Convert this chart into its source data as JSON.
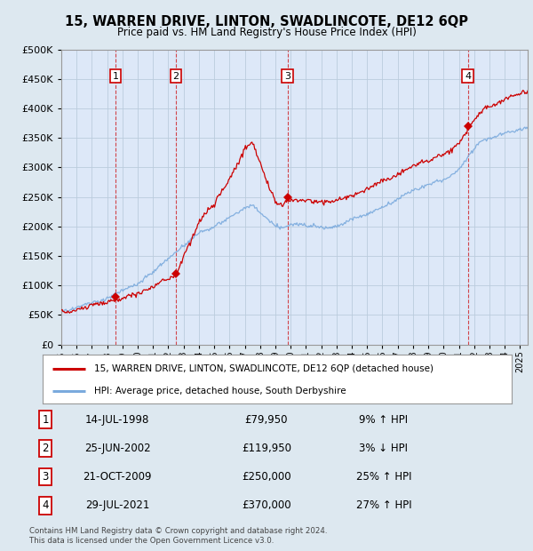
{
  "title": "15, WARREN DRIVE, LINTON, SWADLINCOTE, DE12 6QP",
  "subtitle": "Price paid vs. HM Land Registry's House Price Index (HPI)",
  "legend_line1": "15, WARREN DRIVE, LINTON, SWADLINCOTE, DE12 6QP (detached house)",
  "legend_line2": "HPI: Average price, detached house, South Derbyshire",
  "footer": "Contains HM Land Registry data © Crown copyright and database right 2024.\nThis data is licensed under the Open Government Licence v3.0.",
  "transactions": [
    {
      "num": 1,
      "date": "14-JUL-1998",
      "year": 1998.54,
      "price": 79950,
      "pct": "9%",
      "dir": "↑"
    },
    {
      "num": 2,
      "date": "25-JUN-2002",
      "year": 2002.49,
      "price": 119950,
      "pct": "3%",
      "dir": "↓"
    },
    {
      "num": 3,
      "date": "21-OCT-2009",
      "year": 2009.8,
      "price": 250000,
      "pct": "25%",
      "dir": "↑"
    },
    {
      "num": 4,
      "date": "29-JUL-2021",
      "year": 2021.58,
      "price": 370000,
      "pct": "27%",
      "dir": "↑"
    }
  ],
  "hpi_color": "#7aaadd",
  "price_color": "#cc0000",
  "background_color": "#dde8f0",
  "plot_bg_color": "#dde8f8",
  "grid_color": "#bbccdd",
  "dashed_color": "#cc0000",
  "ylim": [
    0,
    500000
  ],
  "yticks": [
    0,
    50000,
    100000,
    150000,
    200000,
    250000,
    300000,
    350000,
    400000,
    450000,
    500000
  ],
  "xmin": 1995.0,
  "xmax": 2025.5
}
